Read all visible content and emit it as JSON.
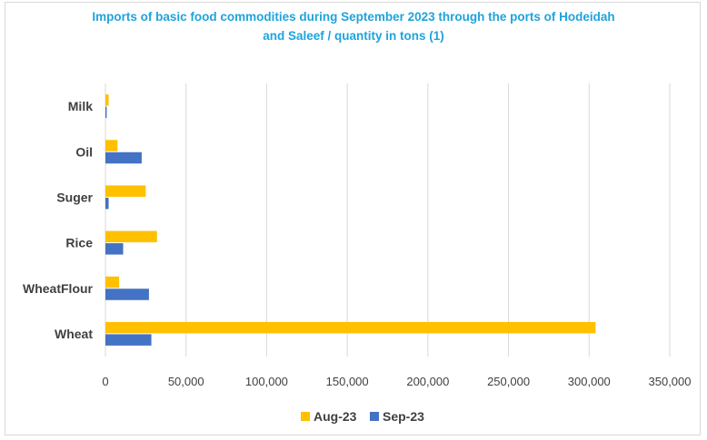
{
  "chart_data": {
    "type": "bar",
    "orientation": "horizontal",
    "title_lines": [
      "Imports of basic food commodities during September 2023 through the ports of Hodeidah",
      "and Saleef / quantity in tons (1)"
    ],
    "categories": [
      "Milk",
      "Oil",
      "Suger",
      "Rice",
      "WheatFlour",
      "Wheat"
    ],
    "series": [
      {
        "name": "Aug-23",
        "color": "#ffc000",
        "values": [
          2000,
          7500,
          25000,
          32000,
          8500,
          304000
        ]
      },
      {
        "name": "Sep-23",
        "color": "#4472c4",
        "values": [
          800,
          22500,
          2000,
          11000,
          27000,
          28500
        ]
      }
    ],
    "xlim": [
      0,
      350000
    ],
    "x_ticks": [
      0,
      50000,
      100000,
      150000,
      200000,
      250000,
      300000,
      350000
    ],
    "x_tick_labels": [
      "0",
      "50,000",
      "100,000",
      "150,000",
      "200,000",
      "250,000",
      "300,000",
      "350,000"
    ],
    "grid": true,
    "legend_position": "bottom"
  }
}
